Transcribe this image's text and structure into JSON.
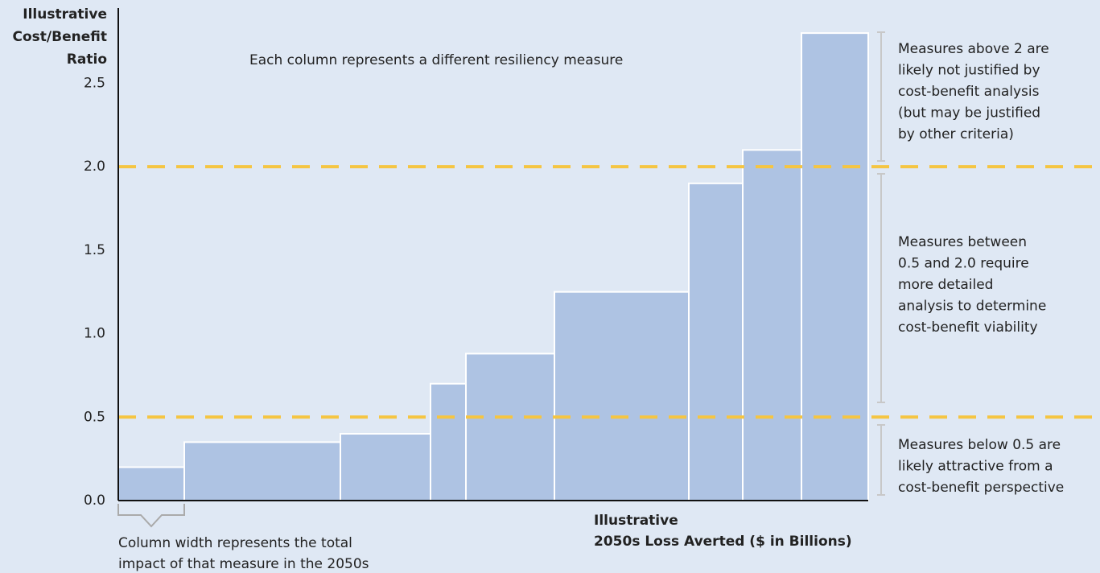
{
  "chart_data": {
    "type": "variable-width-bar",
    "ylabel": [
      "Illustrative",
      "Cost/Benefit",
      "Ratio"
    ],
    "xlabel": [
      "Illustrative",
      "2050s Loss Averted ($ in Billions)"
    ],
    "values": [
      0.2,
      0.35,
      0.4,
      0.7,
      0.88,
      1.25,
      1.9,
      2.1,
      2.8
    ],
    "widths": [
      82,
      194,
      112,
      44,
      110,
      167,
      67,
      73,
      83
    ],
    "color": "#aec3e3",
    "xlim": [
      0,
      932
    ],
    "ylim": [
      0,
      2.95
    ],
    "yticks": [
      {
        "value": 0,
        "label": "0.0"
      },
      0.5,
      {
        "value": 1,
        "label": "1.0"
      },
      1.5,
      {
        "value": 2,
        "label": "2.0"
      },
      2.5
    ],
    "reference_lines": [
      0.5,
      2.0
    ],
    "reference_color": "#f5c542",
    "annotations": {
      "top": [
        "Each column represents a different resiliency measure"
      ],
      "above": [
        "Measures above 2 are",
        "likely not justified by",
        "cost-benefit analysis",
        "(but may be justified",
        "by other criteria)"
      ],
      "between": [
        "Measures between",
        "0.5 and 2.0 require",
        "more detailed",
        "analysis to determine",
        "cost-benefit viability"
      ],
      "below": [
        "Measures below 0.5 are",
        "likely attractive from a",
        "cost-benefit perspective"
      ],
      "width": [
        "Column width represents the total",
        "impact of that measure in the 2050s"
      ]
    }
  }
}
